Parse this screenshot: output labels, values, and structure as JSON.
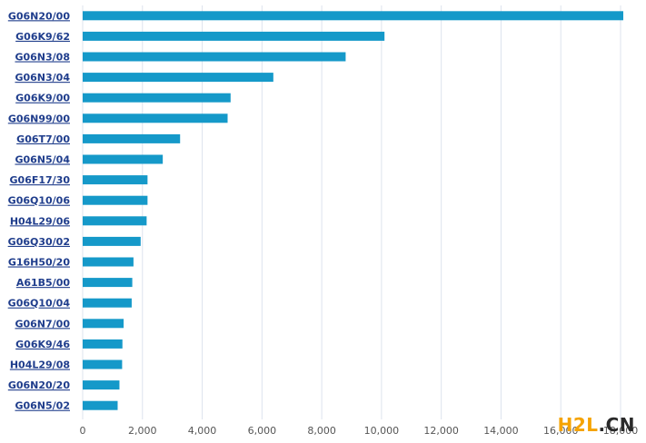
{
  "chart_data": {
    "type": "bar",
    "orientation": "horizontal",
    "categories": [
      "G06N20/00",
      "G06K9/62",
      "G06N3/08",
      "G06N3/04",
      "G06K9/00",
      "G06N99/00",
      "G06T7/00",
      "G06N5/04",
      "G06F17/30",
      "G06Q10/06",
      "H04L29/06",
      "G06Q30/02",
      "G16H50/20",
      "A61B5/00",
      "G06Q10/04",
      "G06N7/00",
      "G06K9/46",
      "H04L29/08",
      "G06N20/20",
      "G06N5/02"
    ],
    "values": [
      18150,
      10100,
      8800,
      6380,
      4950,
      4850,
      3260,
      2680,
      2170,
      2170,
      2140,
      1940,
      1700,
      1660,
      1640,
      1370,
      1330,
      1320,
      1230,
      1170
    ],
    "xlim": [
      0,
      18000
    ],
    "x_ticks": [
      0,
      2000,
      4000,
      6000,
      8000,
      10000,
      12000,
      14000,
      16000,
      18000
    ],
    "x_tick_labels": [
      "0",
      "2,000",
      "4,000",
      "6,000",
      "8,000",
      "10,000",
      "12,000",
      "14,000",
      "16,000",
      "18,000"
    ],
    "grid": "vertical",
    "bar_color": "#1599c9",
    "grid_color": "#dde3ee",
    "label_color": "#1f3d8c",
    "title": "",
    "xlabel": "",
    "ylabel": ""
  },
  "watermark": {
    "part1": "H2L",
    "part2": ".CN",
    "color1": "#f5a300",
    "color2": "#2a2a2a"
  }
}
